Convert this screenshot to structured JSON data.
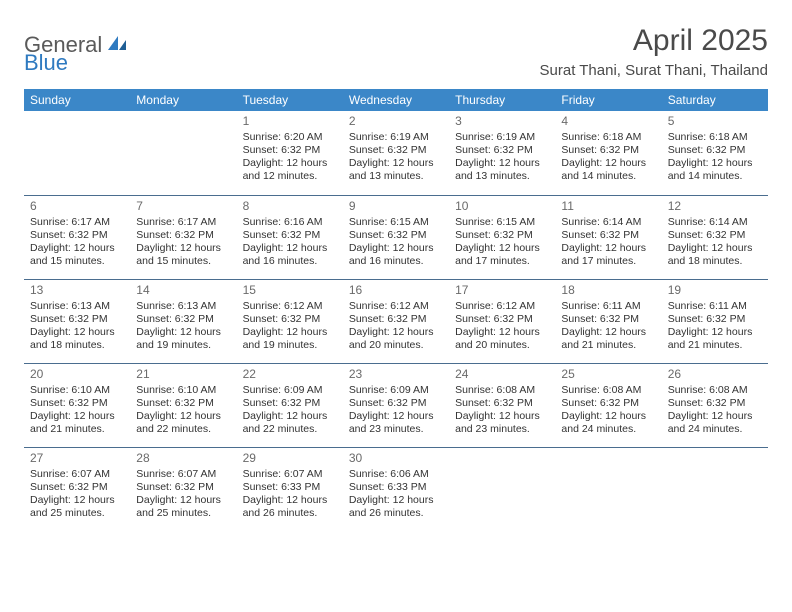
{
  "logo": {
    "text1": "General",
    "text2": "Blue"
  },
  "title": "April 2025",
  "location": "Surat Thani, Surat Thani, Thailand",
  "colors": {
    "header_bg": "#3b87c8",
    "header_text": "#ffffff",
    "cell_border": "#4a6d8f",
    "daynum": "#6a6a6a",
    "body_text": "#333333",
    "logo_gray": "#5a5a5a",
    "logo_blue": "#2f7ac0",
    "title_color": "#4a4a4a"
  },
  "weekdays": [
    "Sunday",
    "Monday",
    "Tuesday",
    "Wednesday",
    "Thursday",
    "Friday",
    "Saturday"
  ],
  "weeks": [
    [
      null,
      null,
      {
        "day": "1",
        "sunrise": "Sunrise: 6:20 AM",
        "sunset": "Sunset: 6:32 PM",
        "d1": "Daylight: 12 hours",
        "d2": "and 12 minutes."
      },
      {
        "day": "2",
        "sunrise": "Sunrise: 6:19 AM",
        "sunset": "Sunset: 6:32 PM",
        "d1": "Daylight: 12 hours",
        "d2": "and 13 minutes."
      },
      {
        "day": "3",
        "sunrise": "Sunrise: 6:19 AM",
        "sunset": "Sunset: 6:32 PM",
        "d1": "Daylight: 12 hours",
        "d2": "and 13 minutes."
      },
      {
        "day": "4",
        "sunrise": "Sunrise: 6:18 AM",
        "sunset": "Sunset: 6:32 PM",
        "d1": "Daylight: 12 hours",
        "d2": "and 14 minutes."
      },
      {
        "day": "5",
        "sunrise": "Sunrise: 6:18 AM",
        "sunset": "Sunset: 6:32 PM",
        "d1": "Daylight: 12 hours",
        "d2": "and 14 minutes."
      }
    ],
    [
      {
        "day": "6",
        "sunrise": "Sunrise: 6:17 AM",
        "sunset": "Sunset: 6:32 PM",
        "d1": "Daylight: 12 hours",
        "d2": "and 15 minutes."
      },
      {
        "day": "7",
        "sunrise": "Sunrise: 6:17 AM",
        "sunset": "Sunset: 6:32 PM",
        "d1": "Daylight: 12 hours",
        "d2": "and 15 minutes."
      },
      {
        "day": "8",
        "sunrise": "Sunrise: 6:16 AM",
        "sunset": "Sunset: 6:32 PM",
        "d1": "Daylight: 12 hours",
        "d2": "and 16 minutes."
      },
      {
        "day": "9",
        "sunrise": "Sunrise: 6:15 AM",
        "sunset": "Sunset: 6:32 PM",
        "d1": "Daylight: 12 hours",
        "d2": "and 16 minutes."
      },
      {
        "day": "10",
        "sunrise": "Sunrise: 6:15 AM",
        "sunset": "Sunset: 6:32 PM",
        "d1": "Daylight: 12 hours",
        "d2": "and 17 minutes."
      },
      {
        "day": "11",
        "sunrise": "Sunrise: 6:14 AM",
        "sunset": "Sunset: 6:32 PM",
        "d1": "Daylight: 12 hours",
        "d2": "and 17 minutes."
      },
      {
        "day": "12",
        "sunrise": "Sunrise: 6:14 AM",
        "sunset": "Sunset: 6:32 PM",
        "d1": "Daylight: 12 hours",
        "d2": "and 18 minutes."
      }
    ],
    [
      {
        "day": "13",
        "sunrise": "Sunrise: 6:13 AM",
        "sunset": "Sunset: 6:32 PM",
        "d1": "Daylight: 12 hours",
        "d2": "and 18 minutes."
      },
      {
        "day": "14",
        "sunrise": "Sunrise: 6:13 AM",
        "sunset": "Sunset: 6:32 PM",
        "d1": "Daylight: 12 hours",
        "d2": "and 19 minutes."
      },
      {
        "day": "15",
        "sunrise": "Sunrise: 6:12 AM",
        "sunset": "Sunset: 6:32 PM",
        "d1": "Daylight: 12 hours",
        "d2": "and 19 minutes."
      },
      {
        "day": "16",
        "sunrise": "Sunrise: 6:12 AM",
        "sunset": "Sunset: 6:32 PM",
        "d1": "Daylight: 12 hours",
        "d2": "and 20 minutes."
      },
      {
        "day": "17",
        "sunrise": "Sunrise: 6:12 AM",
        "sunset": "Sunset: 6:32 PM",
        "d1": "Daylight: 12 hours",
        "d2": "and 20 minutes."
      },
      {
        "day": "18",
        "sunrise": "Sunrise: 6:11 AM",
        "sunset": "Sunset: 6:32 PM",
        "d1": "Daylight: 12 hours",
        "d2": "and 21 minutes."
      },
      {
        "day": "19",
        "sunrise": "Sunrise: 6:11 AM",
        "sunset": "Sunset: 6:32 PM",
        "d1": "Daylight: 12 hours",
        "d2": "and 21 minutes."
      }
    ],
    [
      {
        "day": "20",
        "sunrise": "Sunrise: 6:10 AM",
        "sunset": "Sunset: 6:32 PM",
        "d1": "Daylight: 12 hours",
        "d2": "and 21 minutes."
      },
      {
        "day": "21",
        "sunrise": "Sunrise: 6:10 AM",
        "sunset": "Sunset: 6:32 PM",
        "d1": "Daylight: 12 hours",
        "d2": "and 22 minutes."
      },
      {
        "day": "22",
        "sunrise": "Sunrise: 6:09 AM",
        "sunset": "Sunset: 6:32 PM",
        "d1": "Daylight: 12 hours",
        "d2": "and 22 minutes."
      },
      {
        "day": "23",
        "sunrise": "Sunrise: 6:09 AM",
        "sunset": "Sunset: 6:32 PM",
        "d1": "Daylight: 12 hours",
        "d2": "and 23 minutes."
      },
      {
        "day": "24",
        "sunrise": "Sunrise: 6:08 AM",
        "sunset": "Sunset: 6:32 PM",
        "d1": "Daylight: 12 hours",
        "d2": "and 23 minutes."
      },
      {
        "day": "25",
        "sunrise": "Sunrise: 6:08 AM",
        "sunset": "Sunset: 6:32 PM",
        "d1": "Daylight: 12 hours",
        "d2": "and 24 minutes."
      },
      {
        "day": "26",
        "sunrise": "Sunrise: 6:08 AM",
        "sunset": "Sunset: 6:32 PM",
        "d1": "Daylight: 12 hours",
        "d2": "and 24 minutes."
      }
    ],
    [
      {
        "day": "27",
        "sunrise": "Sunrise: 6:07 AM",
        "sunset": "Sunset: 6:32 PM",
        "d1": "Daylight: 12 hours",
        "d2": "and 25 minutes."
      },
      {
        "day": "28",
        "sunrise": "Sunrise: 6:07 AM",
        "sunset": "Sunset: 6:32 PM",
        "d1": "Daylight: 12 hours",
        "d2": "and 25 minutes."
      },
      {
        "day": "29",
        "sunrise": "Sunrise: 6:07 AM",
        "sunset": "Sunset: 6:33 PM",
        "d1": "Daylight: 12 hours",
        "d2": "and 26 minutes."
      },
      {
        "day": "30",
        "sunrise": "Sunrise: 6:06 AM",
        "sunset": "Sunset: 6:33 PM",
        "d1": "Daylight: 12 hours",
        "d2": "and 26 minutes."
      },
      null,
      null,
      null
    ]
  ]
}
